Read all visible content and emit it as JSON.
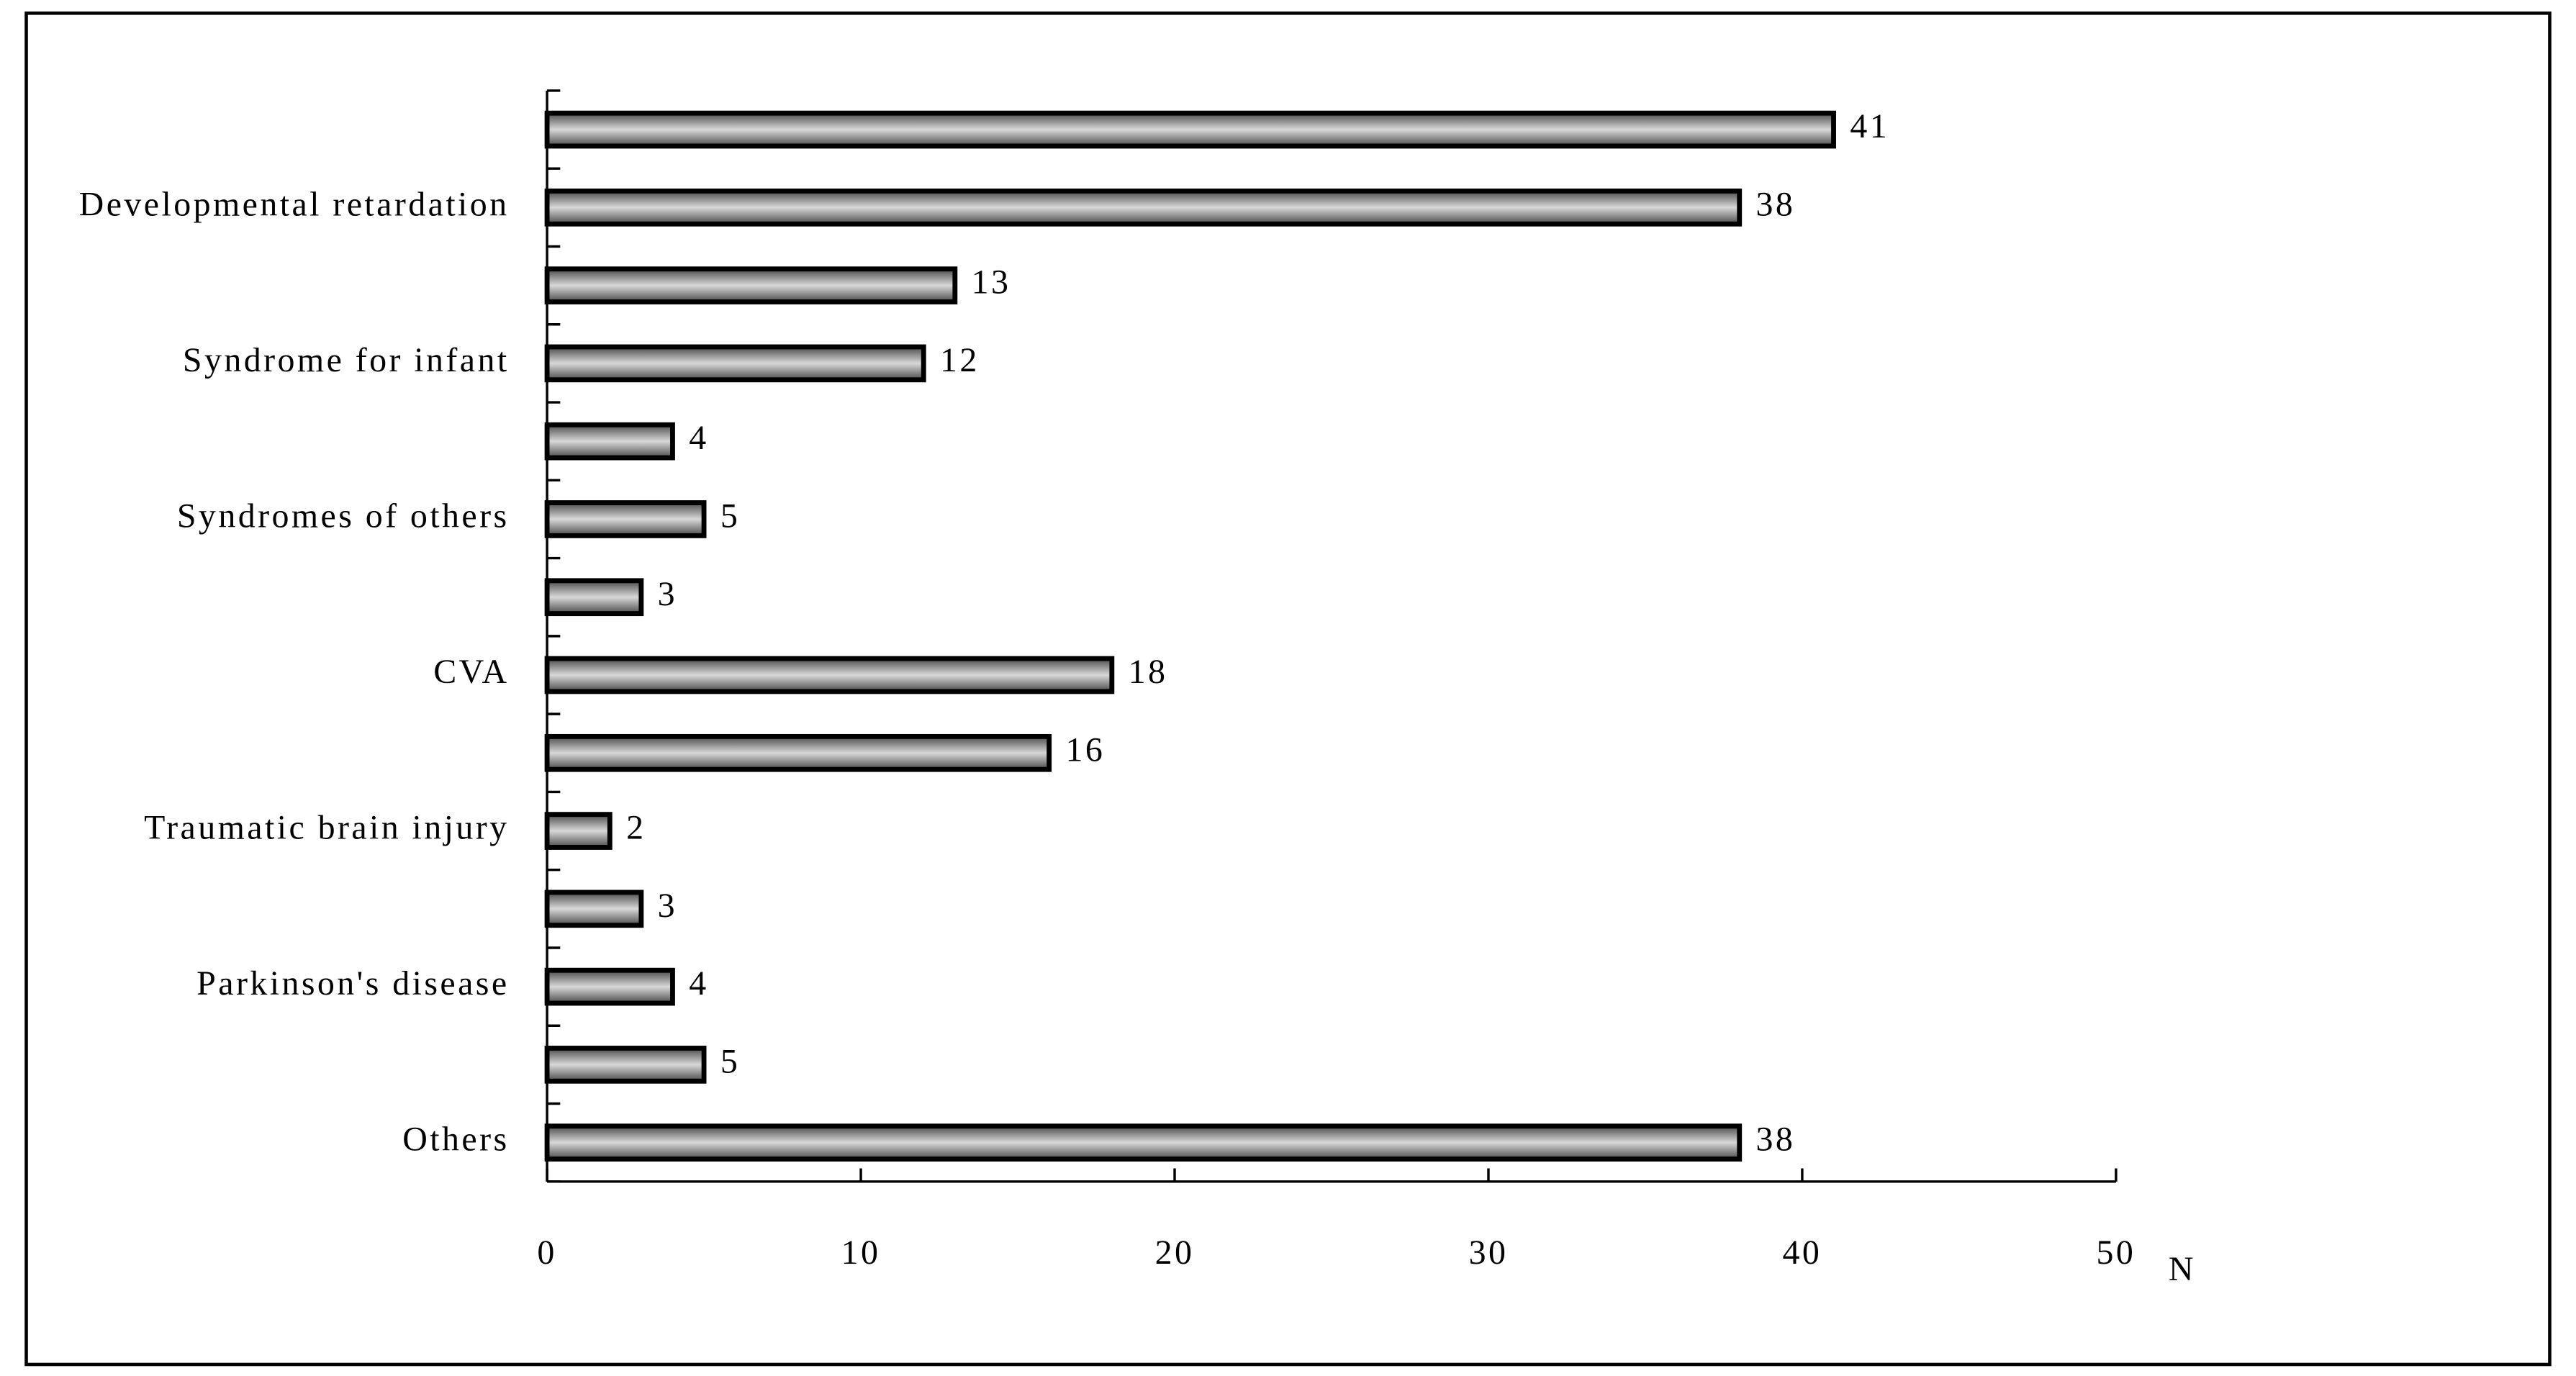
{
  "chart_data": {
    "type": "hbar",
    "categories": [
      null,
      "Developmental retardation",
      null,
      "Syndrome for infant",
      null,
      "Syndromes of others",
      null,
      "CVA",
      null,
      "Traumatic brain injury",
      null,
      "Parkinson's disease",
      null,
      "Others"
    ],
    "values": [
      41,
      38,
      13,
      12,
      4,
      5,
      3,
      18,
      16,
      2,
      3,
      4,
      5,
      38
    ],
    "color": "#888888",
    "x_label": "N",
    "xlim": [
      0,
      50
    ],
    "xticks": [
      0,
      10,
      20,
      30,
      40,
      50
    ]
  }
}
